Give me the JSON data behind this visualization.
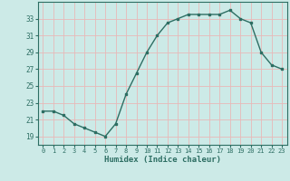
{
  "x": [
    0,
    1,
    2,
    3,
    4,
    5,
    6,
    7,
    8,
    9,
    10,
    11,
    12,
    13,
    14,
    15,
    16,
    17,
    18,
    19,
    20,
    21,
    22,
    23
  ],
  "y": [
    22,
    22,
    21.5,
    20.5,
    20,
    19.5,
    19,
    20.5,
    24,
    26.5,
    29,
    31,
    32.5,
    33,
    33.5,
    33.5,
    33.5,
    33.5,
    34,
    33,
    32.5,
    29,
    27.5,
    27
  ],
  "line_color": "#2d6e63",
  "marker_color": "#2d6e63",
  "bg_color": "#cceae7",
  "grid_color_major": "#f0c8c8",
  "grid_color_minor": "#e8e8e8",
  "tick_color": "#2d6e63",
  "xlabel": "Humidex (Indice chaleur)",
  "ylim": [
    18,
    35
  ],
  "yticks": [
    19,
    21,
    23,
    25,
    27,
    29,
    31,
    33
  ],
  "xticks": [
    0,
    1,
    2,
    3,
    4,
    5,
    6,
    7,
    8,
    9,
    10,
    11,
    12,
    13,
    14,
    15,
    16,
    17,
    18,
    19,
    20,
    21,
    22,
    23
  ]
}
